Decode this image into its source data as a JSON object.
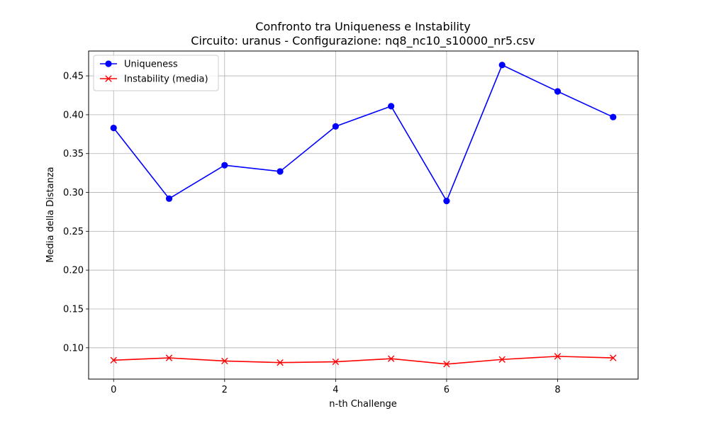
{
  "chart_data": {
    "type": "line",
    "title": "Confronto tra Uniqueness e Instability",
    "subtitle": "Circuito: uranus - Configurazione: nq8_nc10_s10000_nr5.csv",
    "xlabel": "n-th Challenge",
    "ylabel": "Media della Distanza",
    "x": [
      0,
      1,
      2,
      3,
      4,
      5,
      6,
      7,
      8,
      9
    ],
    "xlim": [
      -0.45,
      9.45
    ],
    "ylim": [
      0.0597,
      0.482
    ],
    "x_ticks": [
      0,
      2,
      4,
      6,
      8
    ],
    "x_tick_labels": [
      "0",
      "2",
      "4",
      "6",
      "8"
    ],
    "y_ticks": [
      0.1,
      0.15,
      0.2,
      0.25,
      0.3,
      0.35,
      0.4,
      0.45
    ],
    "y_tick_labels": [
      "0.10",
      "0.15",
      "0.20",
      "0.25",
      "0.30",
      "0.35",
      "0.40",
      "0.45"
    ],
    "grid": true,
    "legend_position": "upper-left",
    "series": [
      {
        "name": "Uniqueness",
        "color": "#0000ff",
        "marker": "circle",
        "values": [
          0.383,
          0.292,
          0.335,
          0.327,
          0.385,
          0.411,
          0.289,
          0.464,
          0.43,
          0.397
        ]
      },
      {
        "name": "Instability (media)",
        "color": "#ff0000",
        "marker": "x",
        "values": [
          0.084,
          0.087,
          0.083,
          0.081,
          0.082,
          0.086,
          0.079,
          0.085,
          0.089,
          0.087
        ]
      }
    ]
  }
}
